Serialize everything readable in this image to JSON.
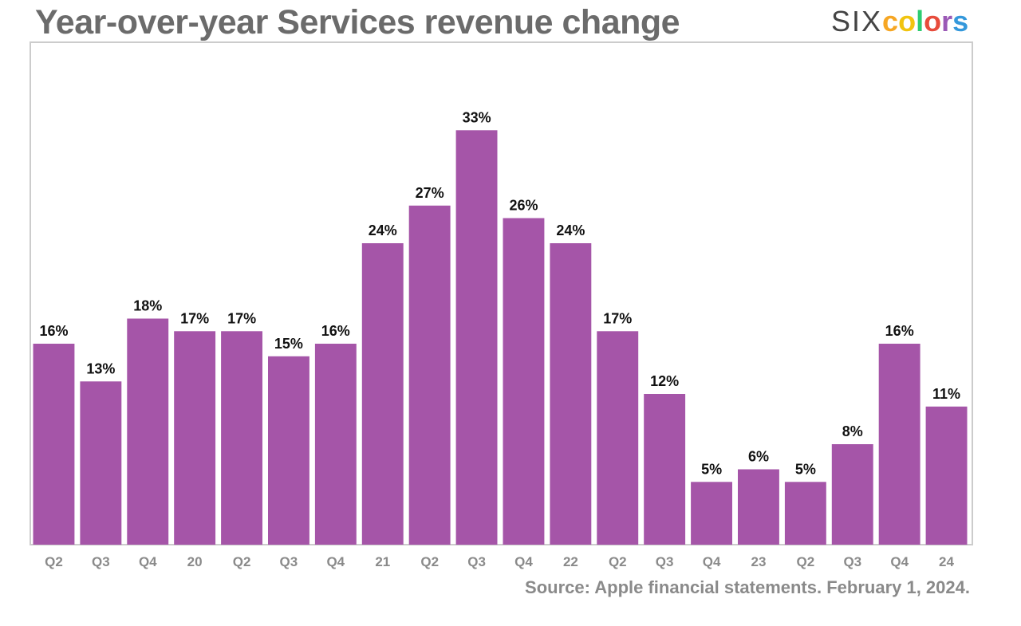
{
  "header": {
    "title": "Year-over-year Services revenue change"
  },
  "logo": {
    "six": "SIX",
    "colors_letters": [
      "c",
      "o",
      "l",
      "o",
      "r",
      "s"
    ],
    "letter_colors": [
      "#f6a623",
      "#f1c40f",
      "#2ecc71",
      "#e74c3c",
      "#9b59b6",
      "#3498db"
    ]
  },
  "footer": {
    "source": "Source: Apple financial statements. February 1, 2024."
  },
  "colors": {
    "bar": "#a555a8",
    "frame": "#cccccc"
  },
  "chart_data": {
    "type": "bar",
    "title": "Year-over-year Services revenue change",
    "xlabel": "",
    "ylabel": "",
    "ylim": [
      0,
      40
    ],
    "grid": false,
    "categories": [
      "Q2",
      "Q3",
      "Q4",
      "20",
      "Q2",
      "Q3",
      "Q4",
      "21",
      "Q2",
      "Q3",
      "Q4",
      "22",
      "Q2",
      "Q3",
      "Q4",
      "23",
      "Q2",
      "Q3",
      "Q4",
      "24"
    ],
    "values": [
      16,
      13,
      18,
      17,
      17,
      15,
      16,
      24,
      27,
      33,
      26,
      24,
      17,
      12,
      5,
      6,
      5,
      8,
      16,
      11
    ],
    "labels": [
      "16%",
      "13%",
      "18%",
      "17%",
      "17%",
      "15%",
      "16%",
      "24%",
      "27%",
      "33%",
      "26%",
      "24%",
      "17%",
      "12%",
      "5%",
      "6%",
      "5%",
      "8%",
      "16%",
      "11%"
    ]
  }
}
